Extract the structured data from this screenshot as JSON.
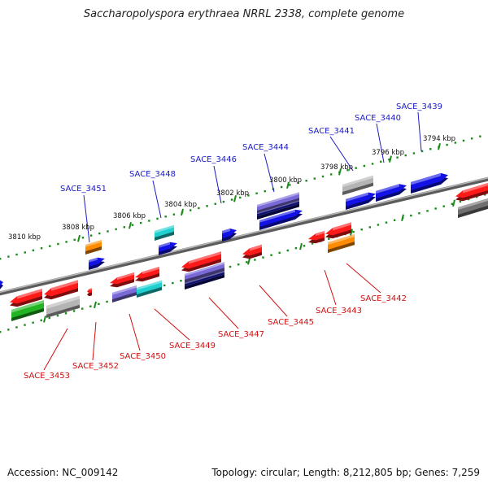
{
  "title": "Saccharopolyspora erythraea NRRL 2338, complete genome",
  "footer": {
    "accession": "Accession: NC_009142",
    "summary": "Topology: circular; Length: 8,212,805 bp; Genes: 7,259"
  },
  "colors": {
    "backbone": "#808080",
    "ticks": "#1a8a1a",
    "label_top": "#1a1ac8",
    "label_bottom": "#d01010",
    "red": "#ff1a1a",
    "blue": "#1212e6",
    "orange": "#ff8c00",
    "cyan": "#20d0d0",
    "purple": "#7a6ad8",
    "navy": "#101070",
    "gray": "#b4b4b4",
    "darkgray": "#707070",
    "green": "#22b422"
  },
  "scale_labels": [
    {
      "text": "3810 kbp",
      "kbp": 3810
    },
    {
      "text": "3808 kbp",
      "kbp": 3808
    },
    {
      "text": "3806 kbp",
      "kbp": 3806
    },
    {
      "text": "3804 kbp",
      "kbp": 3804
    },
    {
      "text": "3802 kbp",
      "kbp": 3802
    },
    {
      "text": "3800 kbp",
      "kbp": 3800
    },
    {
      "text": "3798 kbp",
      "kbp": 3798
    },
    {
      "text": "3796 kbp",
      "kbp": 3796
    },
    {
      "text": "3794 kbp",
      "kbp": 3794
    }
  ],
  "top_gene_labels": [
    "SACE_3451",
    "SACE_3448",
    "SACE_3446",
    "SACE_3444",
    "SACE_3441",
    "SACE_3440",
    "SACE_3439"
  ],
  "bottom_gene_labels": [
    "SACE_3453",
    "SACE_3452",
    "SACE_3450",
    "SACE_3449",
    "SACE_3447",
    "SACE_3445",
    "SACE_3443",
    "SACE_3442"
  ]
}
